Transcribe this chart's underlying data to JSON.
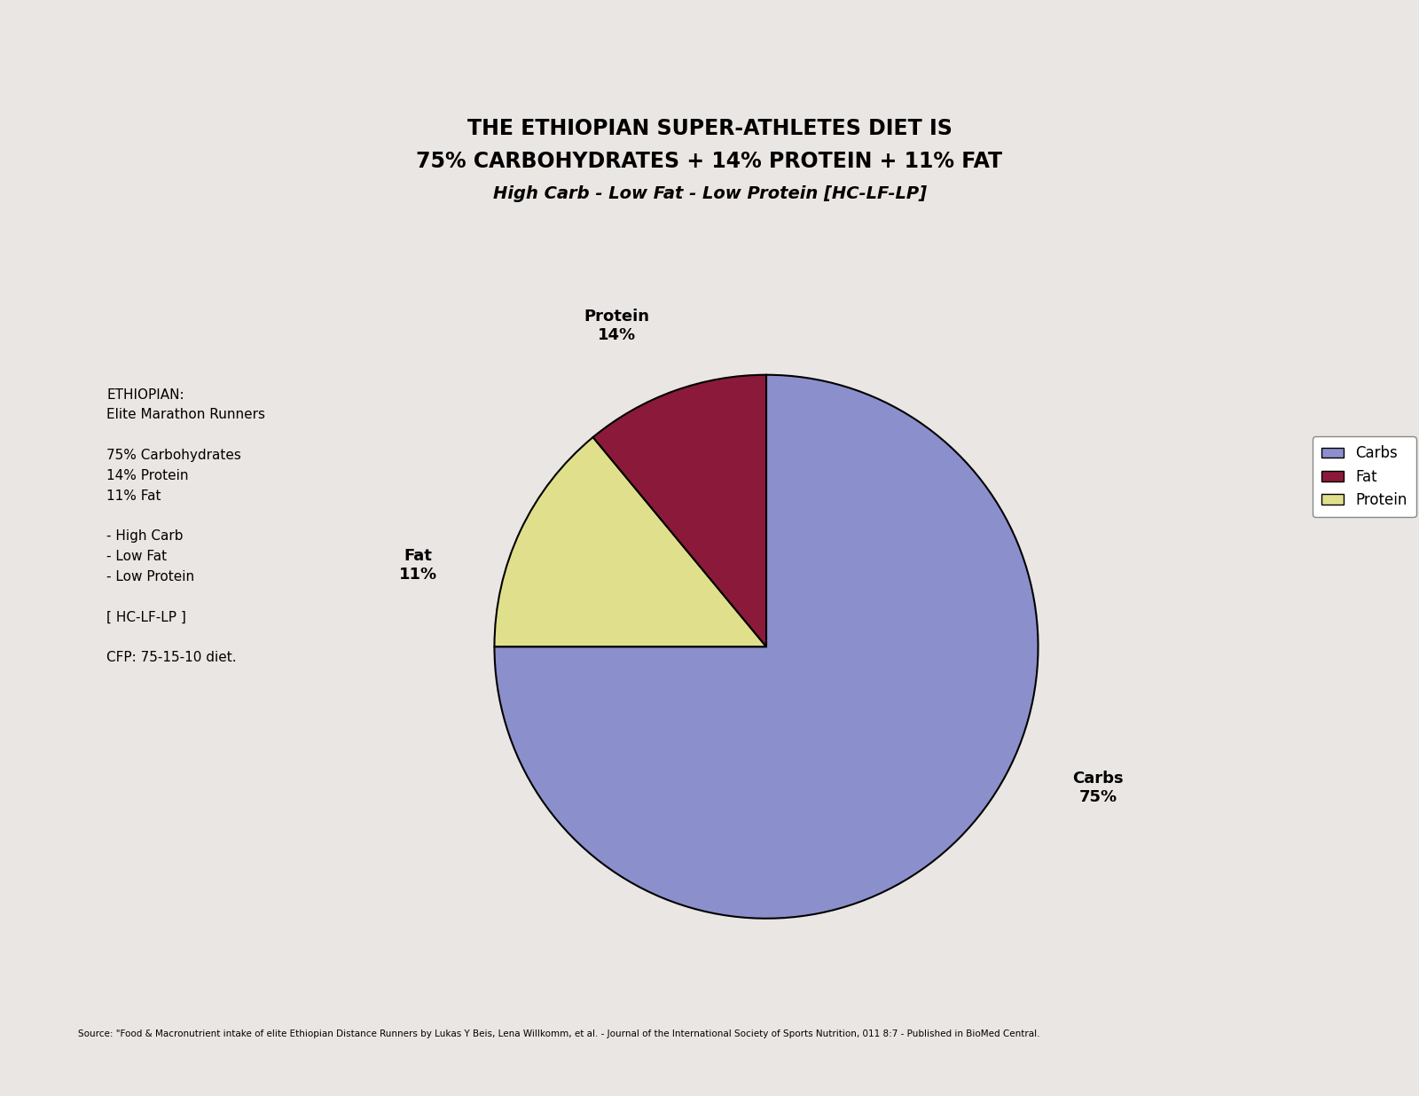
{
  "title_line1": "THE ETHIOPIAN SUPER-ATHLETES DIET IS",
  "title_line2": "75% CARBOHYDRATES + 14% PROTEIN + 11% FAT",
  "title_line3": "High Carb - Low Fat - Low Protein [HC-LF-LP]",
  "slices": [
    75,
    14,
    11
  ],
  "colors": [
    "#8B8FCC",
    "#E0E08C",
    "#8B1A3A"
  ],
  "legend_labels": [
    "Carbs",
    "Fat",
    "Protein"
  ],
  "legend_colors": [
    "#8B8FCC",
    "#8B1A3A",
    "#E0E08C"
  ],
  "left_annotation": "ETHIOPIAN:\nElite Marathon Runners\n\n75% Carbohydrates\n14% Protein\n11% Fat\n\n- High Carb\n- Low Fat\n- Low Protein\n\n[ HC-LF-LP ]\n\nCFP: 75-15-10 diet.",
  "source_text": "Source: \"Food & Macronutrient intake of elite Ethiopian Distance Runners by Lukas Y Beis, Lena Willkomm, et al. - Journal of the International Society of Sports Nutrition, 011 8:7 - Published in BioMed Central.",
  "background_color": "#EAE6E3"
}
